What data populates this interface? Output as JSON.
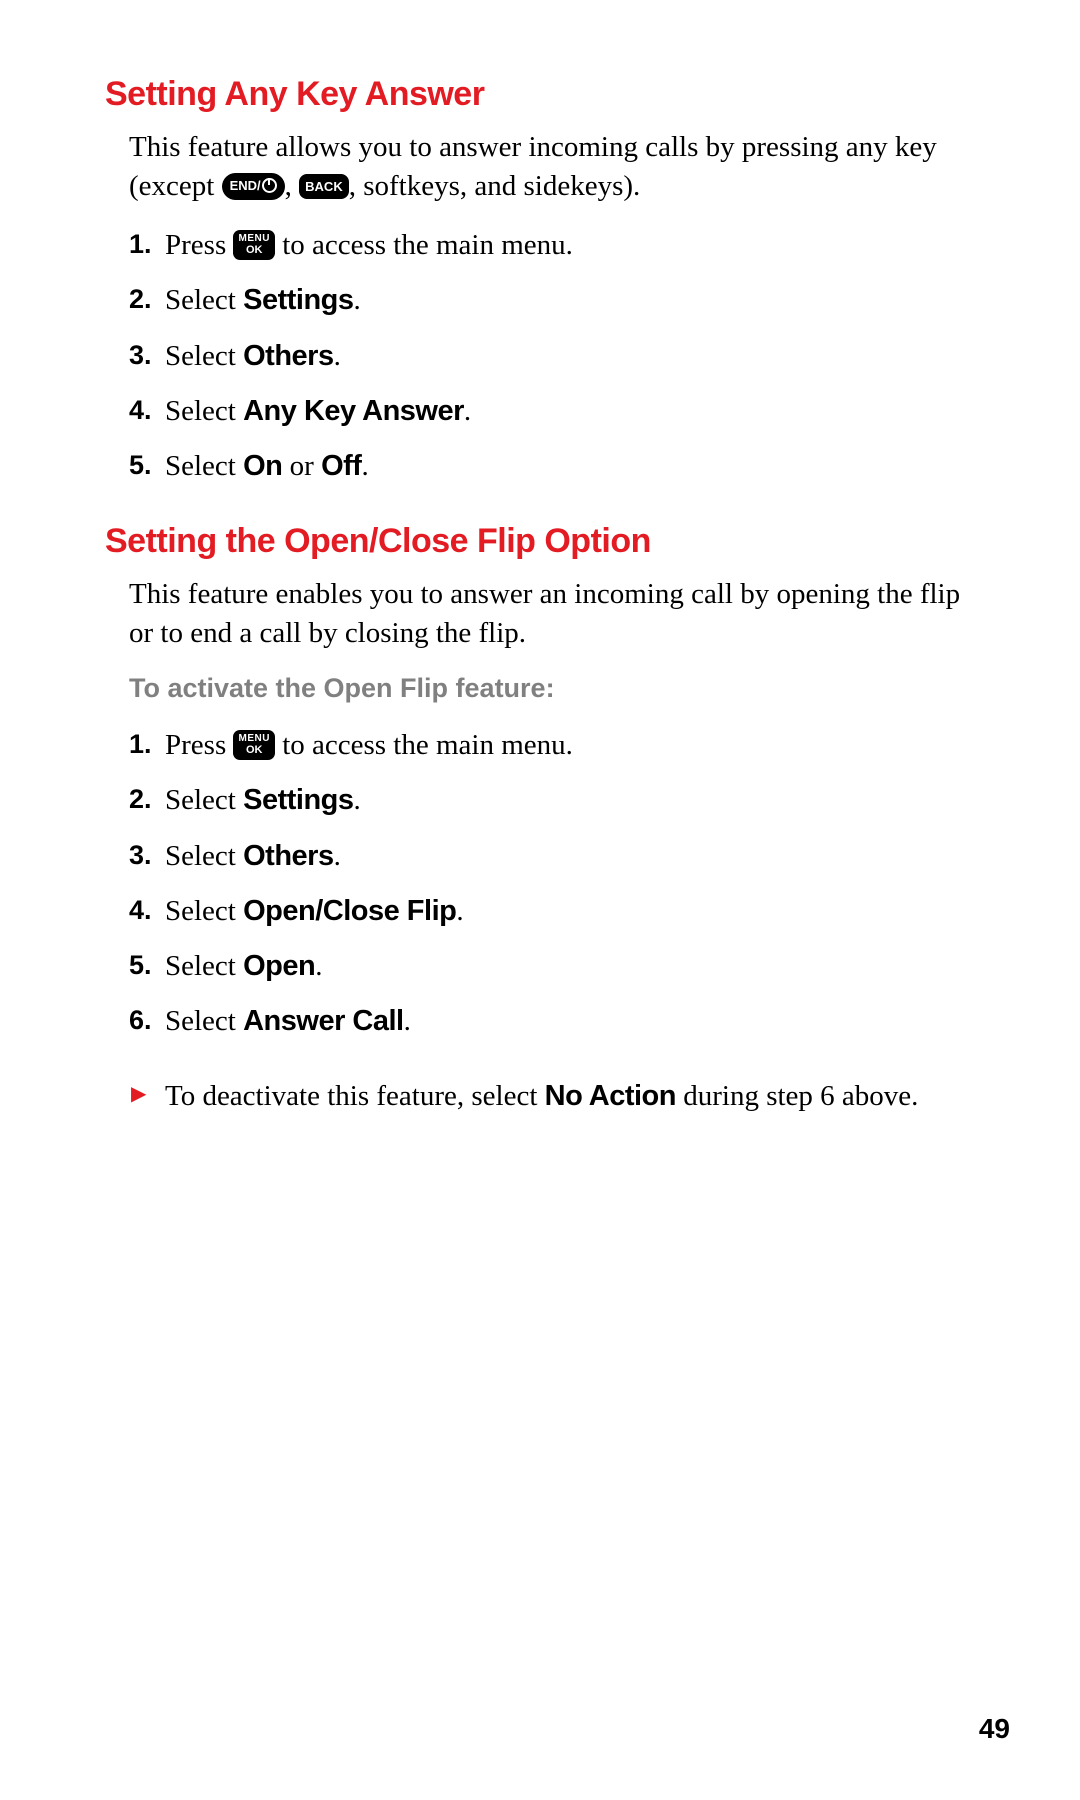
{
  "colors": {
    "heading": "#e31b23",
    "body": "#000000",
    "subhead": "#808080",
    "background": "#ffffff",
    "badge_bg": "#000000",
    "badge_fg": "#ffffff",
    "bullet": "#e31b23"
  },
  "typography": {
    "heading_family": "Arial Black, sans-serif",
    "heading_size_pt": 26,
    "body_family": "Georgia, serif",
    "body_size_pt": 22,
    "bold_inline_family": "Arial, sans-serif"
  },
  "icons": {
    "end_key": "END/⏻",
    "back_key": "BACK",
    "menu_ok": "MENU OK"
  },
  "section1": {
    "heading": "Setting Any Key Answer",
    "intro_pre": "This feature allows you to answer incoming calls by pressing any key (except ",
    "intro_mid": ", ",
    "intro_post": ", softkeys, and sidekeys).",
    "steps": {
      "s1_pre": "Press ",
      "s1_post": " to access the main menu.",
      "s2_pre": "Select ",
      "s2_b": "Settings",
      "s2_post": ".",
      "s3_pre": "Select ",
      "s3_b": "Others",
      "s3_post": ".",
      "s4_pre": "Select ",
      "s4_b": "Any Key Answer",
      "s4_post": ".",
      "s5_pre": "Select ",
      "s5_b1": "On",
      "s5_mid": " or ",
      "s5_b2": "Off",
      "s5_post": "."
    }
  },
  "section2": {
    "heading": "Setting the Open/Close Flip Option",
    "intro": "This feature enables you to answer an incoming call by opening the flip or to end a call by closing the flip.",
    "subhead": "To activate the Open Flip feature:",
    "steps": {
      "s1_pre": "Press ",
      "s1_post": " to access the main menu.",
      "s2_pre": "Select ",
      "s2_b": "Settings",
      "s2_post": ".",
      "s3_pre": "Select ",
      "s3_b": "Others",
      "s3_post": ".",
      "s4_pre": "Select ",
      "s4_b": "Open/Close Flip",
      "s4_post": ".",
      "s5_pre": "Select ",
      "s5_b": "Open",
      "s5_post": ".",
      "s6_pre": "Select ",
      "s6_b": "Answer Call",
      "s6_post": "."
    },
    "note_pre": "To deactivate this feature, select ",
    "note_b": "No Action",
    "note_post": " during step 6 above."
  },
  "nums": {
    "n1": "1.",
    "n2": "2.",
    "n3": "3.",
    "n4": "4.",
    "n5": "5.",
    "n6": "6."
  },
  "page_number": "49"
}
